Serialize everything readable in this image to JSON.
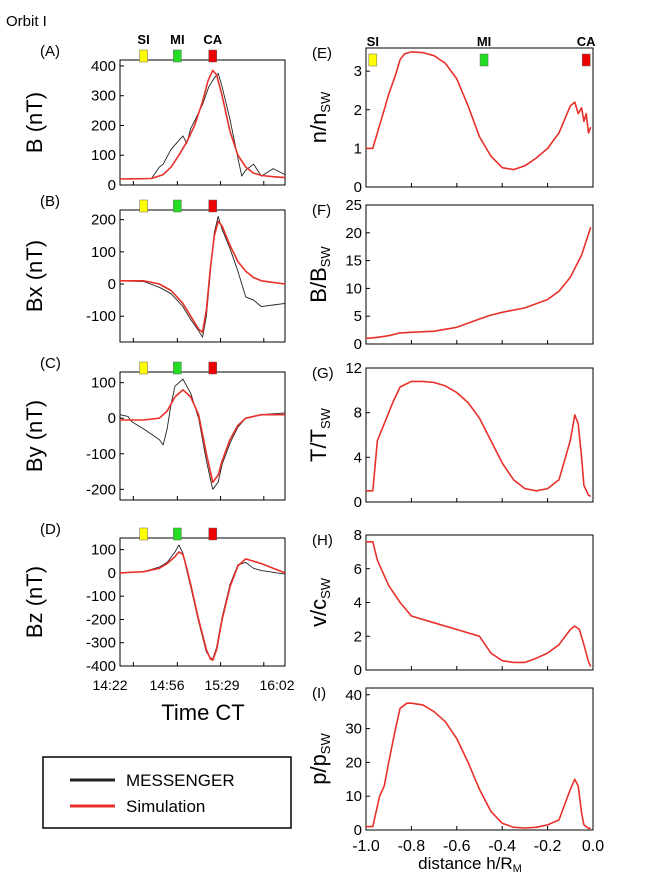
{
  "figure": {
    "title": "Orbit I",
    "marker_colors": {
      "SI": "#ffff00",
      "MI": "#22dd22",
      "CA": "#ee0000"
    },
    "colors": {
      "messenger": "#222222",
      "simulation": "#e8302a"
    },
    "left_xlabel": "Time CT",
    "left_xticklabels": [
      "14:22",
      "14:56",
      "15:29",
      "16:02"
    ],
    "right_xlabel": "distance h/R",
    "right_xlabel_sub": "M",
    "right_xticklabels": [
      "-1.0",
      "-0.8",
      "-0.6",
      "-0.4",
      "-0.2",
      "0.0"
    ],
    "marker_labels": [
      "SI",
      "MI",
      "CA"
    ],
    "legend": [
      {
        "label": "MESSENGER",
        "color": "#222222"
      },
      {
        "label": "Simulation",
        "color": "#e8302a"
      }
    ]
  },
  "chart_data": [
    {
      "id": "A",
      "panel_label": "(A)",
      "type": "line",
      "side": "left",
      "ylabel": "B (nT)",
      "ylim": [
        0,
        420
      ],
      "yticks": [
        0,
        100,
        200,
        300,
        400
      ],
      "xlim": [
        14.2,
        16.3
      ],
      "x_unit": "hours (CT)",
      "markers": [
        {
          "name": "SI",
          "x": 14.5
        },
        {
          "name": "MI",
          "x": 14.93
        },
        {
          "name": "CA",
          "x": 15.38
        }
      ],
      "series": [
        {
          "name": "Simulation",
          "x": [
            14.2,
            14.6,
            14.75,
            14.85,
            14.95,
            15.05,
            15.15,
            15.25,
            15.32,
            15.38,
            15.43,
            15.5,
            15.6,
            15.7,
            15.8,
            15.9,
            16.0,
            16.15,
            16.3
          ],
          "y": [
            20,
            22,
            35,
            60,
            100,
            145,
            200,
            280,
            350,
            385,
            370,
            300,
            180,
            100,
            60,
            40,
            32,
            28,
            25
          ]
        },
        {
          "name": "MESSENGER",
          "x": [
            14.2,
            14.6,
            14.7,
            14.75,
            14.8,
            14.85,
            14.9,
            14.95,
            15.0,
            15.05,
            15.1,
            15.15,
            15.25,
            15.33,
            15.4,
            15.45,
            15.5,
            15.6,
            15.7,
            15.75,
            15.8,
            15.9,
            16.0,
            16.15,
            16.3
          ],
          "y": [
            20,
            22,
            60,
            70,
            95,
            120,
            135,
            150,
            165,
            140,
            190,
            215,
            270,
            330,
            360,
            375,
            330,
            220,
            90,
            30,
            50,
            70,
            30,
            55,
            35
          ]
        }
      ]
    },
    {
      "id": "B",
      "panel_label": "(B)",
      "type": "line",
      "side": "left",
      "ylabel": "Bx (nT)",
      "ylim": [
        -180,
        230
      ],
      "yticks": [
        -100,
        0,
        100,
        200
      ],
      "xlim": [
        14.2,
        16.3
      ],
      "x_unit": "hours (CT)",
      "markers": [
        {
          "name": "SI",
          "x": 14.5
        },
        {
          "name": "MI",
          "x": 14.93
        },
        {
          "name": "CA",
          "x": 15.38
        }
      ],
      "series": [
        {
          "name": "Simulation",
          "x": [
            14.2,
            14.5,
            14.7,
            14.85,
            15.0,
            15.1,
            15.2,
            15.25,
            15.3,
            15.35,
            15.4,
            15.45,
            15.5,
            15.6,
            15.7,
            15.8,
            15.9,
            16.0,
            16.15,
            16.3
          ],
          "y": [
            10,
            10,
            0,
            -20,
            -60,
            -100,
            -140,
            -150,
            -80,
            50,
            150,
            195,
            180,
            120,
            70,
            40,
            20,
            10,
            5,
            0
          ]
        },
        {
          "name": "MESSENGER",
          "x": [
            14.2,
            14.5,
            14.7,
            14.85,
            15.0,
            15.1,
            15.2,
            15.25,
            15.3,
            15.35,
            15.4,
            15.45,
            15.5,
            15.6,
            15.7,
            15.8,
            15.9,
            16.0,
            16.15,
            16.3
          ],
          "y": [
            10,
            8,
            -10,
            -30,
            -70,
            -110,
            -145,
            -165,
            -100,
            40,
            160,
            210,
            170,
            110,
            40,
            -40,
            -50,
            -70,
            -65,
            -60
          ]
        }
      ]
    },
    {
      "id": "C",
      "panel_label": "(C)",
      "type": "line",
      "side": "left",
      "ylabel": "By (nT)",
      "ylim": [
        -230,
        130
      ],
      "yticks": [
        -200,
        -100,
        0,
        100
      ],
      "xlim": [
        14.2,
        16.3
      ],
      "x_unit": "hours (CT)",
      "markers": [
        {
          "name": "SI",
          "x": 14.5
        },
        {
          "name": "MI",
          "x": 14.93
        },
        {
          "name": "CA",
          "x": 15.38
        }
      ],
      "series": [
        {
          "name": "Simulation",
          "x": [
            14.2,
            14.5,
            14.7,
            14.8,
            14.9,
            15.0,
            15.1,
            15.2,
            15.3,
            15.38,
            15.45,
            15.5,
            15.6,
            15.7,
            15.8,
            16.0,
            16.3
          ],
          "y": [
            -5,
            -5,
            0,
            20,
            60,
            80,
            60,
            10,
            -100,
            -180,
            -160,
            -120,
            -60,
            -20,
            0,
            10,
            10
          ]
        },
        {
          "name": "MESSENGER",
          "x": [
            14.2,
            14.3,
            14.35,
            14.5,
            14.6,
            14.7,
            14.75,
            14.8,
            14.85,
            14.9,
            15.0,
            15.1,
            15.2,
            15.3,
            15.38,
            15.45,
            15.5,
            15.6,
            15.7,
            15.8,
            16.0,
            16.3
          ],
          "y": [
            10,
            5,
            -10,
            -30,
            -45,
            -60,
            -75,
            -30,
            40,
            90,
            110,
            70,
            0,
            -120,
            -200,
            -180,
            -130,
            -70,
            -25,
            0,
            10,
            15
          ]
        }
      ]
    },
    {
      "id": "D",
      "panel_label": "(D)",
      "type": "line",
      "side": "left",
      "ylabel": "Bz (nT)",
      "ylim": [
        -400,
        150
      ],
      "yticks": [
        -400,
        -300,
        -200,
        -100,
        0,
        100
      ],
      "xlim": [
        14.2,
        16.3
      ],
      "x_unit": "hours (CT)",
      "markers": [
        {
          "name": "SI",
          "x": 14.5
        },
        {
          "name": "MI",
          "x": 14.93
        },
        {
          "name": "CA",
          "x": 15.38
        }
      ],
      "series": [
        {
          "name": "Simulation",
          "x": [
            14.2,
            14.5,
            14.7,
            14.8,
            14.9,
            14.95,
            15.0,
            15.05,
            15.1,
            15.2,
            15.3,
            15.35,
            15.38,
            15.43,
            15.5,
            15.6,
            15.7,
            15.8,
            16.0,
            16.3
          ],
          "y": [
            0,
            5,
            20,
            40,
            70,
            90,
            80,
            20,
            -50,
            -200,
            -330,
            -370,
            -375,
            -330,
            -200,
            -60,
            30,
            60,
            40,
            0
          ]
        },
        {
          "name": "MESSENGER",
          "x": [
            14.2,
            14.5,
            14.7,
            14.8,
            14.9,
            14.95,
            15.0,
            15.05,
            15.1,
            15.2,
            15.3,
            15.35,
            15.38,
            15.43,
            15.5,
            15.6,
            15.7,
            15.8,
            15.9,
            16.0,
            16.3
          ],
          "y": [
            0,
            5,
            25,
            45,
            90,
            120,
            85,
            10,
            -60,
            -210,
            -340,
            -365,
            -370,
            -320,
            -190,
            -50,
            35,
            45,
            20,
            10,
            -5
          ]
        }
      ]
    },
    {
      "id": "E",
      "panel_label": "(E)",
      "type": "line",
      "side": "right",
      "ylabel": "n/n",
      "ylabel_sub": "SW",
      "ylim": [
        0,
        3.6
      ],
      "yticks": [
        0,
        1,
        2,
        3
      ],
      "xlim": [
        -1.0,
        0.0
      ],
      "markers": [
        {
          "name": "SI",
          "x": -0.97
        },
        {
          "name": "MI",
          "x": -0.48
        },
        {
          "name": "CA",
          "x": -0.03
        }
      ],
      "series": [
        {
          "name": "Simulation",
          "x": [
            -1.0,
            -0.97,
            -0.94,
            -0.92,
            -0.9,
            -0.87,
            -0.85,
            -0.83,
            -0.8,
            -0.75,
            -0.7,
            -0.65,
            -0.6,
            -0.55,
            -0.5,
            -0.45,
            -0.4,
            -0.35,
            -0.3,
            -0.25,
            -0.2,
            -0.15,
            -0.1,
            -0.08,
            -0.065,
            -0.05,
            -0.04,
            -0.03,
            -0.02,
            -0.01
          ],
          "y": [
            1.0,
            1.0,
            1.6,
            2.0,
            2.4,
            2.9,
            3.3,
            3.45,
            3.5,
            3.48,
            3.4,
            3.2,
            2.8,
            2.1,
            1.3,
            0.8,
            0.5,
            0.45,
            0.55,
            0.75,
            1.0,
            1.4,
            2.1,
            2.2,
            1.9,
            2.05,
            1.7,
            1.9,
            1.4,
            1.55
          ]
        }
      ]
    },
    {
      "id": "F",
      "panel_label": "(F)",
      "type": "line",
      "side": "right",
      "ylabel": "B/B",
      "ylabel_sub": "SW",
      "ylim": [
        0,
        25
      ],
      "yticks": [
        0,
        5,
        10,
        15,
        20,
        25
      ],
      "xlim": [
        -1.0,
        0.0
      ],
      "markers": [],
      "series": [
        {
          "name": "Simulation",
          "x": [
            -1.0,
            -0.95,
            -0.9,
            -0.85,
            -0.8,
            -0.7,
            -0.6,
            -0.5,
            -0.45,
            -0.4,
            -0.3,
            -0.2,
            -0.15,
            -0.1,
            -0.05,
            -0.01
          ],
          "y": [
            1.0,
            1.2,
            1.5,
            2.0,
            2.1,
            2.3,
            3.0,
            4.5,
            5.2,
            5.7,
            6.5,
            8.0,
            9.5,
            12.0,
            16.0,
            21.0
          ]
        }
      ]
    },
    {
      "id": "G",
      "panel_label": "(G)",
      "type": "line",
      "side": "right",
      "ylabel": "T/T",
      "ylabel_sub": "SW",
      "ylim": [
        0,
        12
      ],
      "yticks": [
        0,
        4,
        8,
        12
      ],
      "xlim": [
        -1.0,
        0.0
      ],
      "markers": [],
      "series": [
        {
          "name": "Simulation",
          "x": [
            -1.0,
            -0.97,
            -0.95,
            -0.92,
            -0.88,
            -0.85,
            -0.8,
            -0.75,
            -0.7,
            -0.65,
            -0.6,
            -0.55,
            -0.5,
            -0.45,
            -0.4,
            -0.35,
            -0.3,
            -0.25,
            -0.2,
            -0.15,
            -0.1,
            -0.08,
            -0.065,
            -0.05,
            -0.04,
            -0.02,
            -0.01
          ],
          "y": [
            1.0,
            1.0,
            5.5,
            7.0,
            9.0,
            10.3,
            10.8,
            10.8,
            10.7,
            10.4,
            9.8,
            8.9,
            7.5,
            5.5,
            3.5,
            2.0,
            1.2,
            1.0,
            1.2,
            2.0,
            5.5,
            7.8,
            7.0,
            4.0,
            1.5,
            0.6,
            0.5
          ]
        }
      ]
    },
    {
      "id": "H",
      "panel_label": "(H)",
      "type": "line",
      "side": "right",
      "ylabel": "v/c",
      "ylabel_sub": "SW",
      "ylim": [
        0,
        8
      ],
      "yticks": [
        0,
        2,
        4,
        6,
        8
      ],
      "xlim": [
        -1.0,
        0.0
      ],
      "markers": [],
      "series": [
        {
          "name": "Simulation",
          "x": [
            -1.0,
            -0.97,
            -0.95,
            -0.9,
            -0.85,
            -0.8,
            -0.7,
            -0.6,
            -0.5,
            -0.45,
            -0.4,
            -0.35,
            -0.3,
            -0.25,
            -0.2,
            -0.15,
            -0.1,
            -0.08,
            -0.06,
            -0.04,
            -0.02,
            -0.01
          ],
          "y": [
            7.6,
            7.6,
            6.5,
            5.0,
            4.0,
            3.2,
            2.8,
            2.4,
            2.0,
            1.0,
            0.55,
            0.45,
            0.45,
            0.7,
            1.0,
            1.5,
            2.4,
            2.6,
            2.4,
            1.5,
            0.5,
            0.2
          ]
        }
      ]
    },
    {
      "id": "I",
      "panel_label": "(I)",
      "type": "line",
      "side": "right",
      "ylabel": "p/p",
      "ylabel_sub": "SW",
      "ylim": [
        0,
        42
      ],
      "yticks": [
        0,
        10,
        20,
        30,
        40
      ],
      "xlim": [
        -1.0,
        0.0
      ],
      "markers": [],
      "series": [
        {
          "name": "Simulation",
          "x": [
            -1.0,
            -0.97,
            -0.94,
            -0.92,
            -0.9,
            -0.87,
            -0.85,
            -0.82,
            -0.8,
            -0.75,
            -0.7,
            -0.65,
            -0.6,
            -0.55,
            -0.5,
            -0.45,
            -0.4,
            -0.35,
            -0.3,
            -0.25,
            -0.2,
            -0.15,
            -0.1,
            -0.08,
            -0.065,
            -0.05,
            -0.04,
            -0.02,
            -0.01
          ],
          "y": [
            1.0,
            1.0,
            10,
            13,
            20,
            30,
            36,
            37.5,
            37.5,
            37,
            35,
            32,
            27,
            20,
            12,
            5.5,
            2.0,
            0.8,
            0.6,
            0.8,
            1.5,
            3.0,
            12,
            15,
            13,
            5,
            1.5,
            0.5,
            0.5
          ]
        }
      ]
    }
  ]
}
